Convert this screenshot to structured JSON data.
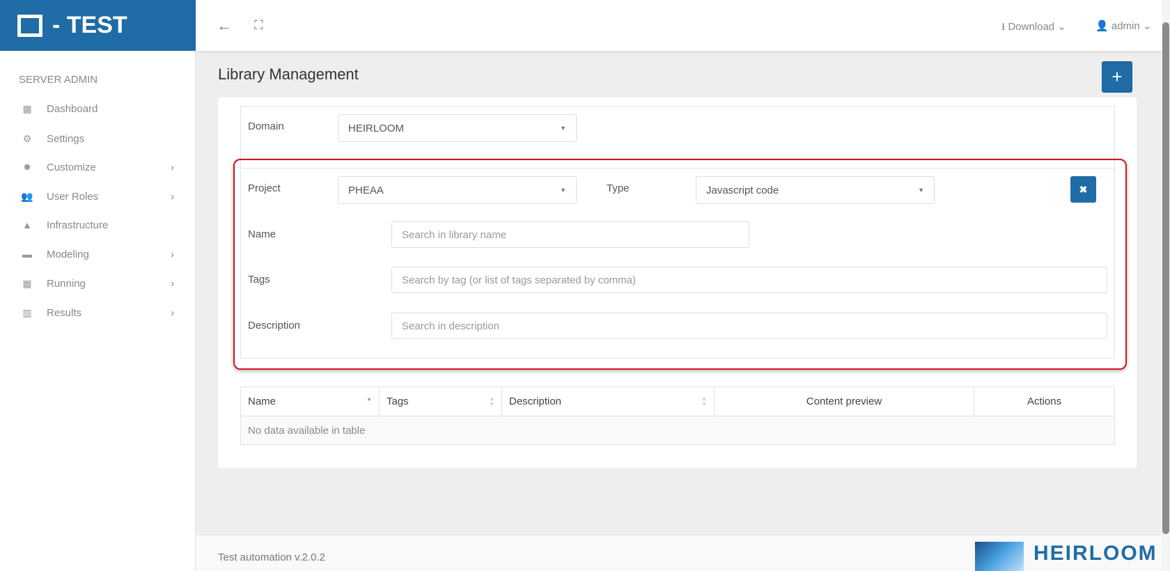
{
  "brand": {
    "title": "- TEST"
  },
  "sidebar": {
    "section": "SERVER ADMIN",
    "items": [
      {
        "label": "Dashboard",
        "icon": "dashboard-icon",
        "glyph": "▦",
        "chevron": false
      },
      {
        "label": "Settings",
        "icon": "gear-icon",
        "glyph": "⚙",
        "chevron": false
      },
      {
        "label": "Customize",
        "icon": "cog-badge-icon",
        "glyph": "✹",
        "chevron": true
      },
      {
        "label": "User Roles",
        "icon": "users-icon",
        "glyph": "👥",
        "chevron": true
      },
      {
        "label": "Infrastructure",
        "icon": "road-icon",
        "glyph": "▲",
        "chevron": false
      },
      {
        "label": "Modeling",
        "icon": "briefcase-icon",
        "glyph": "▬",
        "chevron": true
      },
      {
        "label": "Running",
        "icon": "calendar-icon",
        "glyph": "▦",
        "chevron": true
      },
      {
        "label": "Results",
        "icon": "bar-chart-icon",
        "glyph": "▥",
        "chevron": true
      }
    ]
  },
  "topbar": {
    "download": "Download",
    "user": "admin"
  },
  "page": {
    "title": "Library Management",
    "add": "+"
  },
  "filters": {
    "domain_label": "Domain",
    "domain_value": "HEIRLOOM",
    "project_label": "Project",
    "project_value": "PHEAA",
    "type_label": "Type",
    "type_value": "Javascript code",
    "name_label": "Name",
    "name_placeholder": "Search in library name",
    "tags_label": "Tags",
    "tags_placeholder": "Search by tag (or list of tags separated by comma)",
    "description_label": "Description",
    "description_placeholder": "Search in description",
    "clear": "✖"
  },
  "table": {
    "columns": [
      "Name",
      "Tags",
      "Description",
      "Content preview",
      "Actions"
    ],
    "empty": "No data available in table"
  },
  "footer": {
    "version": "Test automation v.2.0.2",
    "logo": "HEIRLOOM"
  },
  "colors": {
    "brand": "#1f6ca6",
    "highlight": "#d0161b"
  }
}
